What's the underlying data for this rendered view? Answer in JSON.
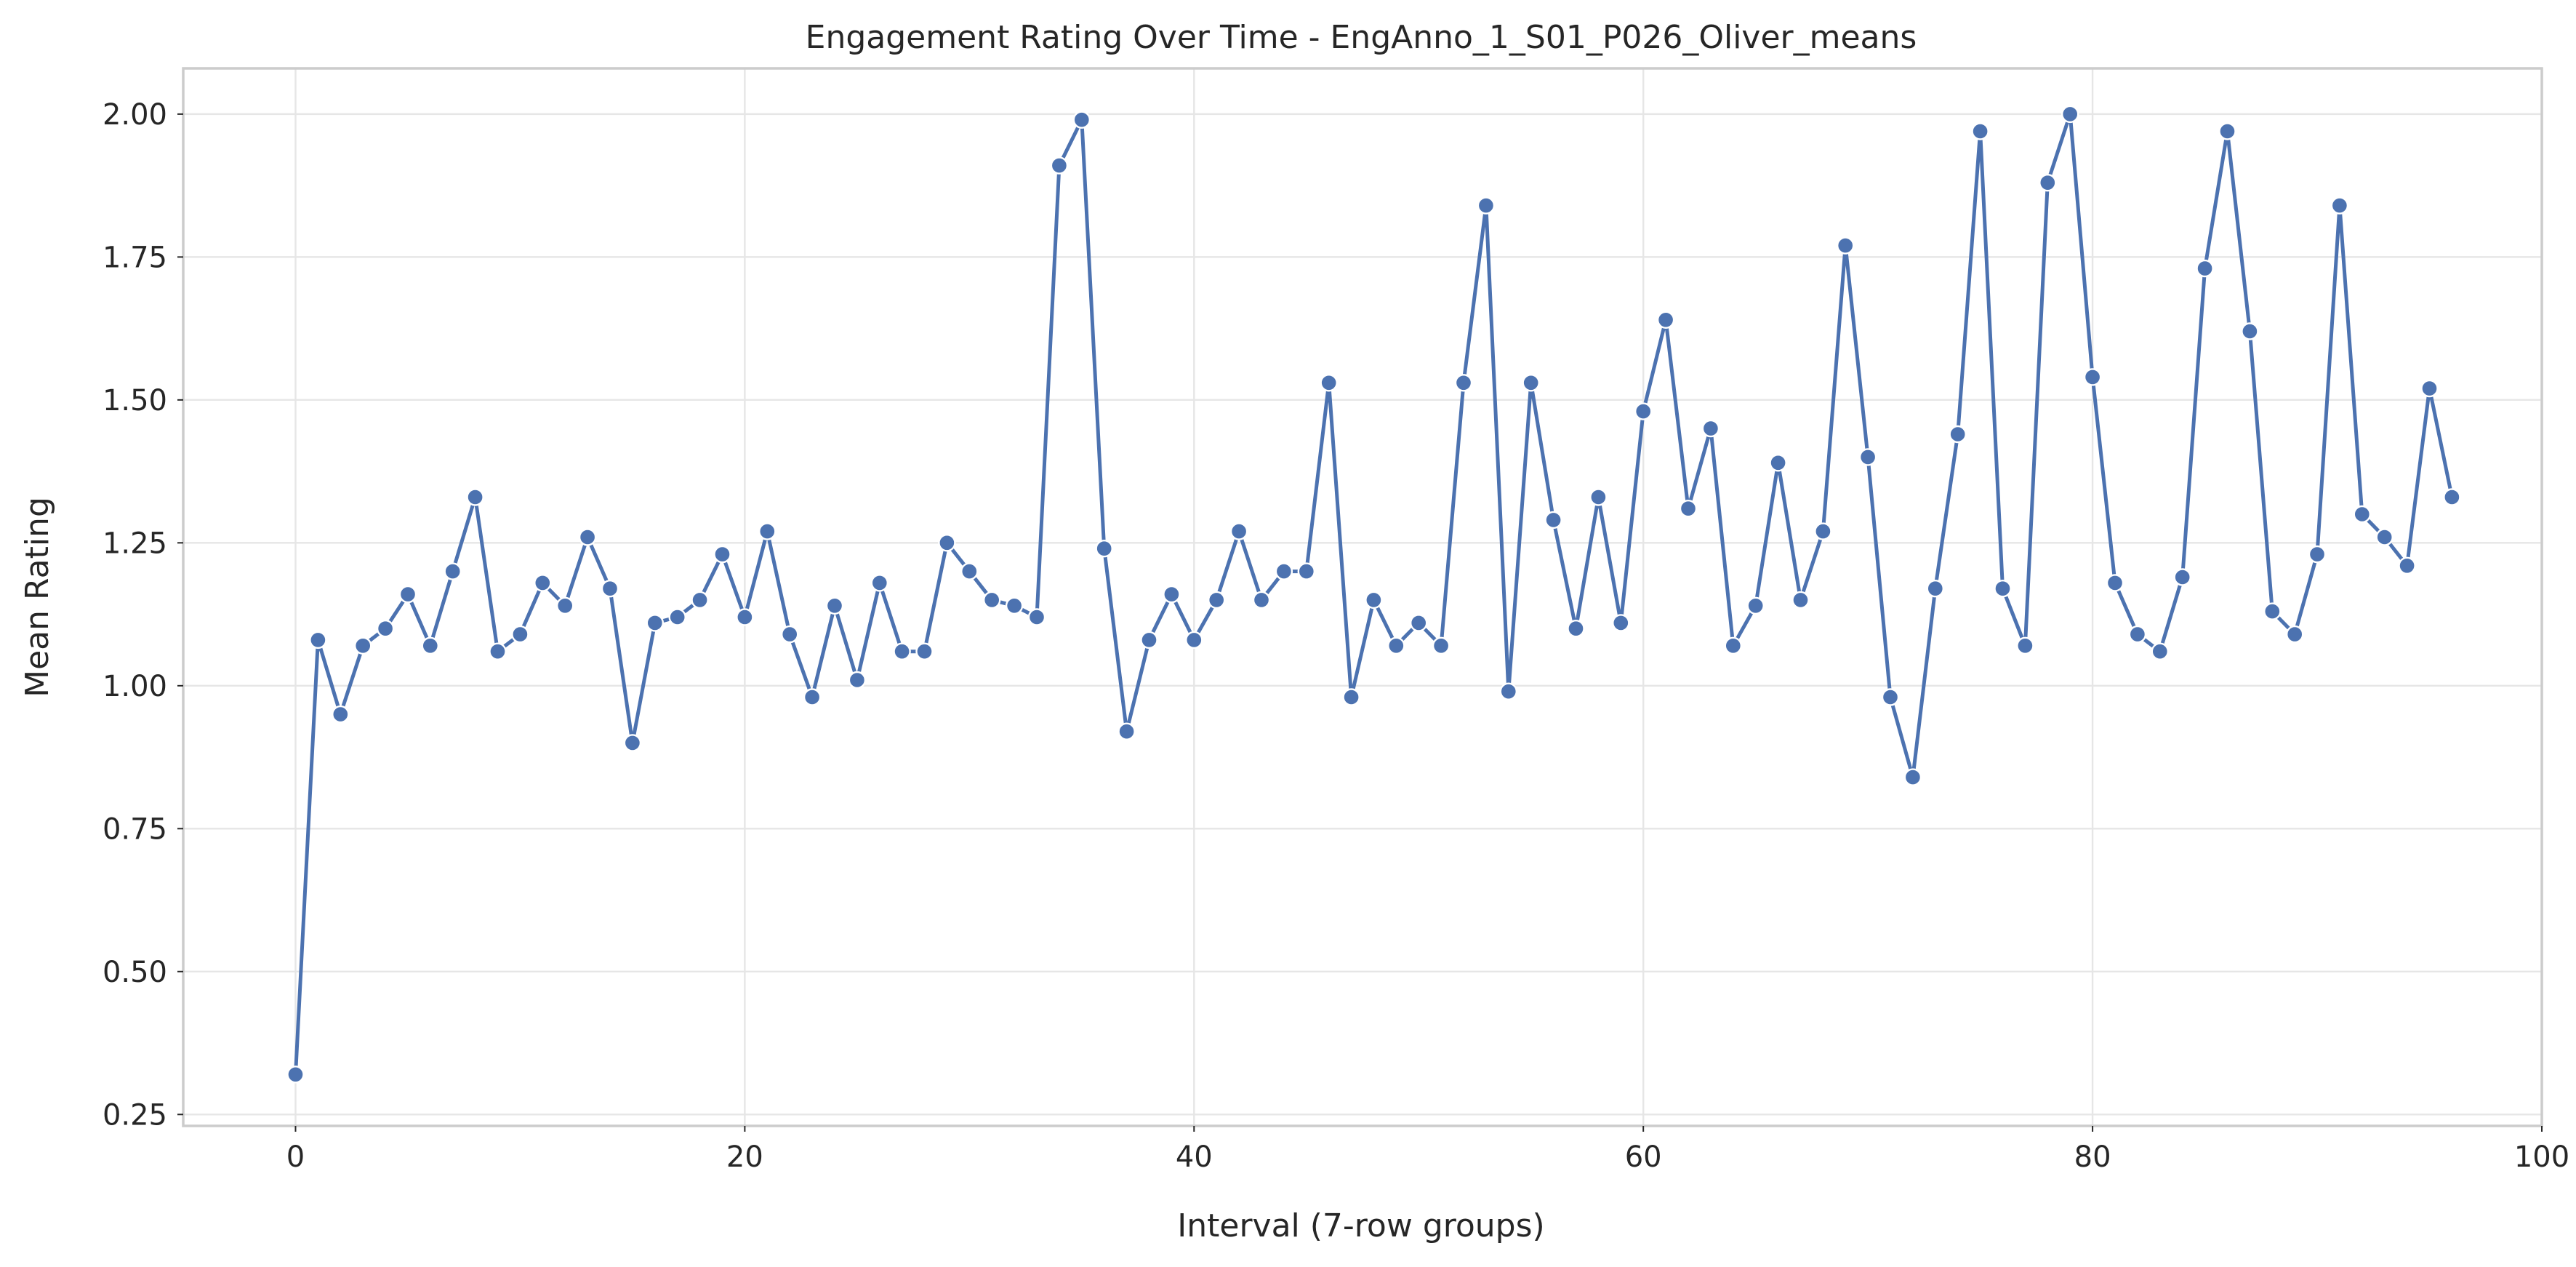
{
  "chart_data": {
    "type": "line",
    "title": "Engagement Rating Over Time -  EngAnno_1_S01_P026_Oliver_means",
    "xlabel": "Interval (7-row groups)",
    "ylabel": "Mean Rating",
    "xlim": [
      -5,
      100
    ],
    "ylim": [
      0.23,
      2.08
    ],
    "xticks": [
      0,
      20,
      40,
      60,
      80,
      100
    ],
    "xtick_labels": [
      "0",
      "20",
      "40",
      "60",
      "80",
      "100"
    ],
    "yticks": [
      0.25,
      0.5,
      0.75,
      1.0,
      1.25,
      1.5,
      1.75,
      2.0
    ],
    "ytick_labels": [
      "0.25",
      "0.50",
      "0.75",
      "1.00",
      "1.25",
      "1.50",
      "1.75",
      "2.00"
    ],
    "grid": true,
    "legend": "none",
    "color": "#4c72b0",
    "marker": "circle",
    "series": [
      {
        "x": [
          0,
          1,
          2,
          3,
          4,
          5,
          6,
          7,
          8,
          9,
          10,
          11,
          12,
          13,
          14,
          15,
          16,
          17,
          18,
          19,
          20,
          21,
          22,
          23,
          24,
          25,
          26,
          27,
          28,
          29,
          30,
          31,
          32,
          33,
          34,
          35,
          36,
          37,
          38,
          39,
          40,
          41,
          42,
          43,
          44,
          45,
          46,
          47,
          48,
          49,
          50,
          51,
          52,
          53,
          54,
          55,
          56,
          57,
          58,
          59,
          60,
          61,
          62,
          63,
          64,
          65,
          66,
          67,
          68,
          69,
          70,
          71,
          72,
          73,
          74,
          75,
          76,
          77,
          78,
          79,
          80,
          81,
          82,
          83,
          84,
          85,
          86,
          87,
          88,
          89,
          90,
          91,
          92,
          93,
          94,
          95,
          96
        ],
        "values": [
          0.32,
          1.08,
          0.95,
          1.07,
          1.1,
          1.16,
          1.07,
          1.2,
          1.33,
          1.06,
          1.09,
          1.18,
          1.14,
          1.26,
          1.17,
          0.9,
          1.11,
          1.12,
          1.15,
          1.23,
          1.12,
          1.27,
          1.09,
          0.98,
          1.14,
          1.01,
          1.18,
          1.06,
          1.06,
          1.25,
          1.2,
          1.15,
          1.14,
          1.12,
          1.91,
          1.99,
          1.24,
          0.92,
          1.08,
          1.16,
          1.08,
          1.15,
          1.27,
          1.15,
          1.2,
          1.2,
          1.53,
          0.98,
          1.15,
          1.07,
          1.11,
          1.07,
          1.53,
          1.84,
          0.99,
          1.53,
          1.29,
          1.1,
          1.33,
          1.11,
          1.48,
          1.64,
          1.31,
          1.45,
          1.07,
          1.14,
          1.39,
          1.15,
          1.27,
          1.77,
          1.4,
          0.98,
          0.84,
          1.17,
          1.44,
          1.97,
          1.17,
          1.07,
          1.88,
          2.0,
          1.54,
          1.18,
          1.09,
          1.06,
          1.19,
          1.73,
          1.97,
          1.62,
          1.13,
          1.09,
          1.23,
          1.84,
          1.3,
          1.26,
          1.21,
          1.52,
          1.33
        ]
      }
    ]
  }
}
